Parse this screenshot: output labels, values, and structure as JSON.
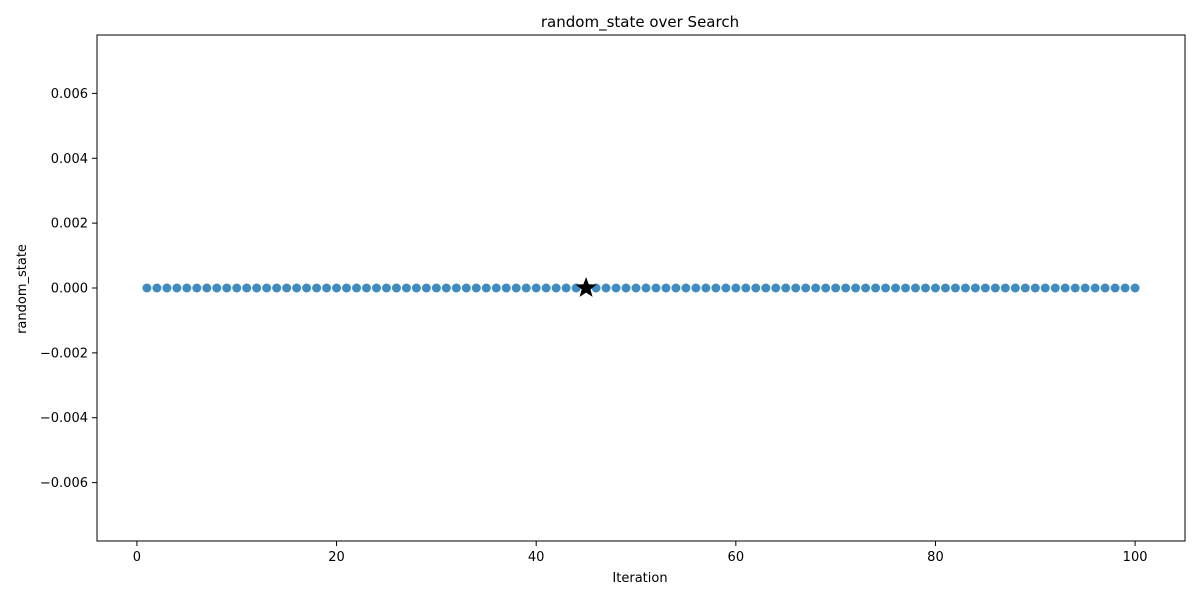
{
  "chart_data": {
    "type": "scatter",
    "title": "random_state over Search",
    "xlabel": "Iteration",
    "ylabel": "random_state",
    "xlim": [
      -4,
      105
    ],
    "ylim": [
      -0.0078,
      0.0078
    ],
    "x_ticks": [
      0,
      20,
      40,
      60,
      80,
      100
    ],
    "x_tick_labels": [
      "0",
      "20",
      "40",
      "60",
      "80",
      "100"
    ],
    "y_ticks": [
      -0.006,
      -0.004,
      -0.002,
      0.0,
      0.002,
      0.004,
      0.006
    ],
    "y_tick_labels": [
      "−0.006",
      "−0.004",
      "−0.002",
      "0.000",
      "0.002",
      "0.004",
      "0.006"
    ],
    "grid": false,
    "series": [
      {
        "color": "#1f77b4",
        "x_start": 1,
        "x_end": 100,
        "y_value": 0.0
      }
    ],
    "best_point": {
      "x": 45,
      "y": 0.0,
      "marker": "star",
      "color": "#000000"
    }
  }
}
